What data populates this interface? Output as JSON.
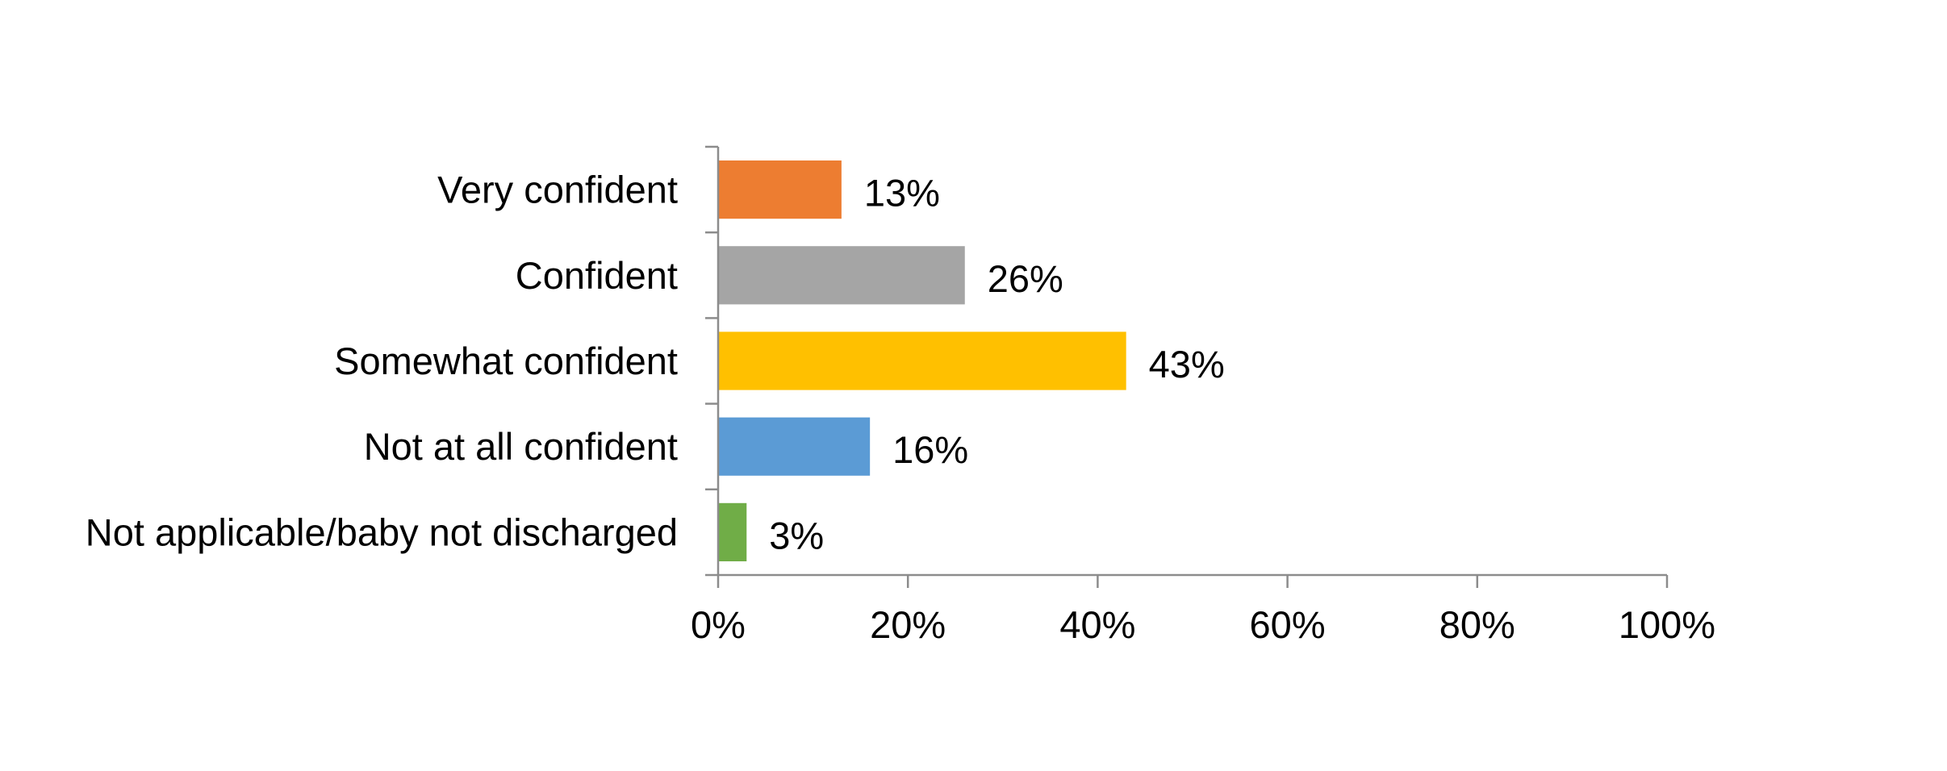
{
  "chart_data": {
    "type": "bar",
    "orientation": "horizontal",
    "title": "",
    "xlabel": "",
    "ylabel": "",
    "categories": [
      "Very confident",
      "Confident",
      "Somewhat confident",
      "Not at all confident",
      "Not applicable/baby not discharged"
    ],
    "values": [
      13,
      26,
      43,
      16,
      3
    ],
    "data_labels": [
      "13%",
      "26%",
      "43%",
      "16%",
      "3%"
    ],
    "colors": [
      "#ed7d31",
      "#a5a5a5",
      "#ffc000",
      "#5b9bd5",
      "#70ad47"
    ],
    "xlim": [
      0,
      100
    ],
    "x_ticks": [
      0,
      20,
      40,
      60,
      80,
      100
    ],
    "x_tick_labels": [
      "0%",
      "20%",
      "40%",
      "60%",
      "80%",
      "100%"
    ],
    "grid": false,
    "legend": "none"
  }
}
